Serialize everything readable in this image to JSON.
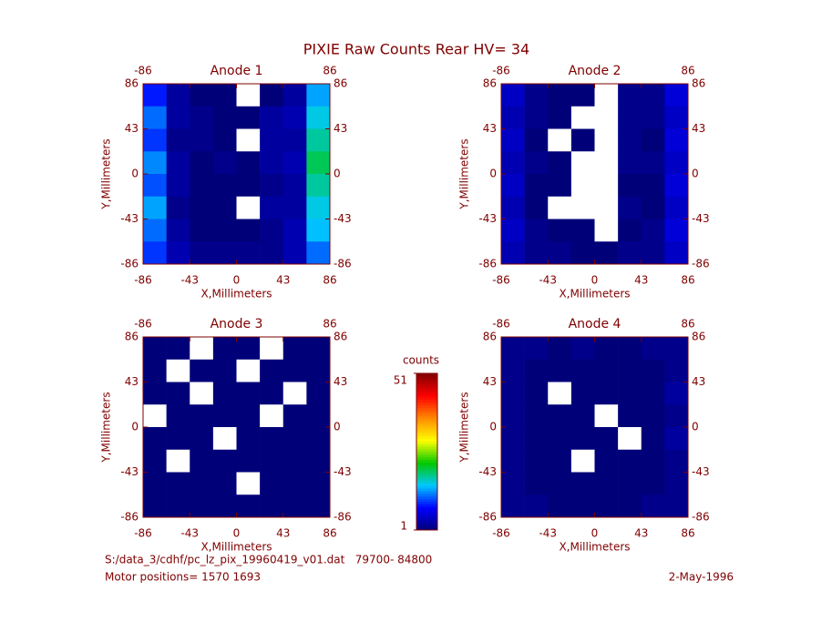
{
  "title": "PIXIE Raw Counts Rear HV= 34",
  "chart_data": [
    {
      "type": "heatmap",
      "title": "Anode 1",
      "xlabel": "X,Millimeters",
      "ylabel": "Y,Millimeters",
      "xlim": [
        -86,
        86
      ],
      "ylim": [
        -86,
        86
      ],
      "xticks": [
        -86,
        -43,
        0,
        43,
        86
      ],
      "yticks": [
        -86,
        -43,
        0,
        43,
        86
      ],
      "z": [
        [
          9,
          3,
          1,
          1,
          0,
          1,
          3,
          14
        ],
        [
          12,
          3,
          2,
          1,
          1,
          3,
          4,
          16
        ],
        [
          10,
          2,
          2,
          1,
          0,
          3,
          3,
          18
        ],
        [
          13,
          3,
          1,
          2,
          1,
          3,
          4,
          20
        ],
        [
          11,
          3,
          1,
          1,
          1,
          2,
          3,
          18
        ],
        [
          14,
          2,
          1,
          1,
          0,
          3,
          3,
          16
        ],
        [
          12,
          3,
          1,
          1,
          1,
          2,
          4,
          15
        ],
        [
          10,
          4,
          2,
          2,
          2,
          2,
          4,
          12
        ]
      ]
    },
    {
      "type": "heatmap",
      "title": "Anode 2",
      "xlabel": "X,Millimeters",
      "ylabel": "Y,Millimeters",
      "xlim": [
        -86,
        86
      ],
      "ylim": [
        -86,
        86
      ],
      "xticks": [
        -86,
        -43,
        0,
        43,
        86
      ],
      "yticks": [
        -86,
        -43,
        0,
        43,
        86
      ],
      "z": [
        [
          5,
          2,
          1,
          1,
          0,
          2,
          2,
          6
        ],
        [
          4,
          2,
          1,
          0,
          0,
          2,
          2,
          5
        ],
        [
          5,
          1,
          0,
          1,
          0,
          2,
          1,
          6
        ],
        [
          4,
          2,
          1,
          0,
          0,
          2,
          2,
          5
        ],
        [
          5,
          1,
          1,
          0,
          0,
          1,
          1,
          6
        ],
        [
          4,
          1,
          0,
          0,
          0,
          2,
          1,
          5
        ],
        [
          5,
          2,
          1,
          1,
          0,
          1,
          2,
          6
        ],
        [
          4,
          2,
          2,
          1,
          1,
          2,
          2,
          5
        ]
      ]
    },
    {
      "type": "heatmap",
      "title": "Anode 3",
      "xlabel": "X,Millimeters",
      "ylabel": "Y,Millimeters",
      "xlim": [
        -86,
        86
      ],
      "ylim": [
        -86,
        86
      ],
      "xticks": [
        -86,
        -43,
        0,
        43,
        86
      ],
      "yticks": [
        -86,
        -43,
        0,
        43,
        86
      ],
      "z": [
        [
          1,
          1,
          0,
          1,
          1,
          0,
          1,
          1
        ],
        [
          1,
          0,
          1,
          1,
          0,
          1,
          1,
          1
        ],
        [
          1,
          1,
          0,
          1,
          1,
          1,
          0,
          1
        ],
        [
          0,
          1,
          1,
          1,
          1,
          0,
          1,
          1
        ],
        [
          1,
          1,
          1,
          0,
          1,
          1,
          1,
          1
        ],
        [
          1,
          0,
          1,
          1,
          1,
          1,
          1,
          1
        ],
        [
          1,
          1,
          1,
          1,
          0,
          1,
          1,
          1
        ],
        [
          1,
          1,
          1,
          1,
          1,
          1,
          1,
          1
        ]
      ]
    },
    {
      "type": "heatmap",
      "title": "Anode 4",
      "xlabel": "X,Millimeters",
      "ylabel": "Y,Millimeters",
      "xlim": [
        -86,
        86
      ],
      "ylim": [
        -86,
        86
      ],
      "xticks": [
        -86,
        -43,
        0,
        43,
        86
      ],
      "yticks": [
        -86,
        -43,
        0,
        43,
        86
      ],
      "z": [
        [
          2,
          2,
          1,
          2,
          1,
          1,
          2,
          2
        ],
        [
          2,
          1,
          1,
          1,
          1,
          1,
          1,
          2
        ],
        [
          2,
          1,
          0,
          1,
          1,
          1,
          1,
          3
        ],
        [
          2,
          1,
          1,
          1,
          0,
          1,
          1,
          2
        ],
        [
          2,
          1,
          1,
          1,
          1,
          0,
          1,
          3
        ],
        [
          2,
          1,
          1,
          0,
          1,
          1,
          1,
          2
        ],
        [
          2,
          1,
          1,
          1,
          1,
          1,
          1,
          2
        ],
        [
          2,
          2,
          1,
          1,
          1,
          1,
          2,
          2
        ]
      ]
    }
  ],
  "colorbar": {
    "label": "counts",
    "lim": [
      1,
      51
    ],
    "ticks": [
      1,
      51
    ]
  },
  "footer": {
    "file": "S:/data_3/cdhf/pc_lz_pix_19960419_v01.dat   79700- 84800",
    "motor": "Motor positions= 1570 1693",
    "date": "2-May-1996"
  }
}
